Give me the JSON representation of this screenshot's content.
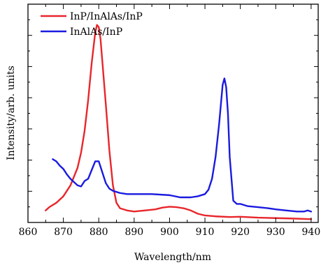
{
  "chart_data": {
    "type": "line",
    "title": "",
    "xlabel": "Wavelength/nm",
    "ylabel": "Intensity/arb. units",
    "xlim": [
      860,
      942
    ],
    "ylim": [
      0,
      1
    ],
    "x_ticks": [
      "860",
      "870",
      "880",
      "890",
      "900",
      "910",
      "920",
      "930",
      "940"
    ],
    "y_tick_labels_shown": false,
    "grid": false,
    "legend_placement": "top-left",
    "series": [
      {
        "name": "InP/InAlAs/InP",
        "color": "#e8262b",
        "x": [
          865,
          866,
          868,
          870,
          872,
          874,
          875,
          876,
          877,
          878,
          879,
          879.5,
          880,
          880.5,
          881,
          882,
          883,
          884,
          885,
          886,
          888,
          890,
          893,
          896,
          898,
          900,
          902,
          904,
          906,
          908,
          910,
          913,
          917,
          920,
          925,
          930,
          935,
          940
        ],
        "y": [
          0.055,
          0.07,
          0.09,
          0.12,
          0.17,
          0.25,
          0.32,
          0.42,
          0.56,
          0.73,
          0.87,
          0.905,
          0.895,
          0.84,
          0.74,
          0.54,
          0.33,
          0.17,
          0.09,
          0.065,
          0.055,
          0.05,
          0.055,
          0.06,
          0.068,
          0.072,
          0.07,
          0.065,
          0.055,
          0.04,
          0.032,
          0.028,
          0.025,
          0.026,
          0.022,
          0.02,
          0.018,
          0.015
        ]
      },
      {
        "name": "InAlAs/InP",
        "color": "#1a1ae0",
        "x": [
          867,
          868,
          869,
          870,
          871,
          872,
          873,
          874,
          875,
          876,
          877,
          878,
          879,
          880,
          881,
          882,
          883,
          884,
          885,
          886,
          888,
          890,
          895,
          900,
          903,
          906,
          908,
          910,
          911,
          912,
          913,
          914,
          915,
          915.5,
          916,
          916.5,
          917,
          918,
          919,
          920,
          922,
          925,
          928,
          930,
          933,
          936,
          938,
          939,
          940
        ],
        "y": [
          0.29,
          0.28,
          0.26,
          0.245,
          0.22,
          0.2,
          0.185,
          0.17,
          0.165,
          0.19,
          0.2,
          0.24,
          0.28,
          0.28,
          0.23,
          0.18,
          0.155,
          0.145,
          0.14,
          0.135,
          0.13,
          0.13,
          0.13,
          0.125,
          0.115,
          0.115,
          0.12,
          0.13,
          0.15,
          0.2,
          0.3,
          0.45,
          0.63,
          0.66,
          0.62,
          0.5,
          0.3,
          0.1,
          0.085,
          0.085,
          0.075,
          0.07,
          0.065,
          0.06,
          0.055,
          0.05,
          0.05,
          0.055,
          0.05
        ]
      }
    ]
  }
}
